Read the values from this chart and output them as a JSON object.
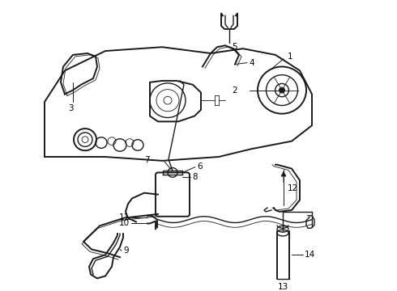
{
  "bg_color": "#ffffff",
  "line_color": "#1a1a1a",
  "label_color": "#000000",
  "fig_width": 4.9,
  "fig_height": 3.6,
  "dpi": 100,
  "lw_main": 1.0,
  "lw_thick": 1.4,
  "lw_thin": 0.6,
  "fontsize": 7.5
}
